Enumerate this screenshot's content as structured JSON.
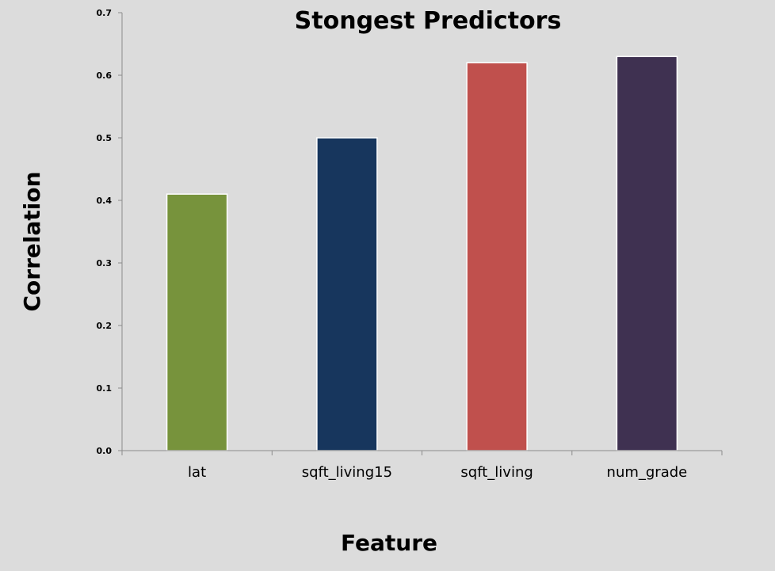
{
  "chart_data": {
    "type": "bar",
    "title": "Stongest Predictors",
    "xlabel": "Feature",
    "ylabel": "Correlation",
    "categories": [
      "lat",
      "sqft_living15",
      "sqft_living",
      "num_grade"
    ],
    "values": [
      0.41,
      0.5,
      0.62,
      0.63
    ],
    "colors": [
      "#77933c",
      "#17365d",
      "#c0504d",
      "#3f3151"
    ],
    "ylim": [
      0,
      0.7
    ],
    "yticks": [
      "0.0",
      "0.1",
      "0.2",
      "0.3",
      "0.4",
      "0.5",
      "0.6",
      "0.7"
    ],
    "grid": false,
    "legend": "none"
  }
}
